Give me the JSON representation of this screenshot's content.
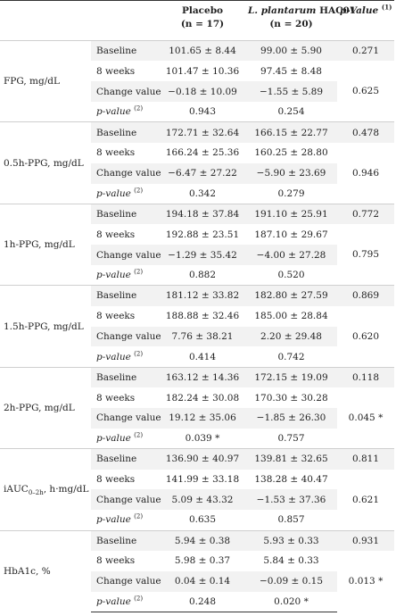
{
  "header": {
    "placebo_name": "Placebo",
    "placebo_n": "(n = 17)",
    "lp_name_italic": "L. plantarum",
    "lp_name_strain": "HAC01",
    "lp_n": "(n = 20)",
    "pvalue_label": "p-Value",
    "pvalue_sup": "(1)"
  },
  "row_labels": {
    "baseline": "Baseline",
    "weeks8": "8 weeks",
    "change": "Change value",
    "pval": "p-value",
    "pval_sup": "(2)"
  },
  "groups": [
    {
      "label": "FPG, mg/dL",
      "baseline": {
        "placebo": "101.65 ± 8.44",
        "lp": "99.00 ± 5.90",
        "p": "0.271"
      },
      "weeks8": {
        "placebo": "101.47 ± 10.36",
        "lp": "97.45 ± 8.48"
      },
      "change": {
        "placebo": "−0.18 ± 10.09",
        "lp": "−1.55 ± 5.89",
        "p": "0.625"
      },
      "pval": {
        "placebo": "0.943",
        "lp": "0.254"
      }
    },
    {
      "label": "0.5h-PPG, mg/dL",
      "baseline": {
        "placebo": "172.71 ± 32.64",
        "lp": "166.15 ± 22.77",
        "p": "0.478"
      },
      "weeks8": {
        "placebo": "166.24 ± 25.36",
        "lp": "160.25 ± 28.80"
      },
      "change": {
        "placebo": "−6.47 ± 27.22",
        "lp": "−5.90 ± 23.69",
        "p": "0.946"
      },
      "pval": {
        "placebo": "0.342",
        "lp": "0.279"
      }
    },
    {
      "label": "1h-PPG, mg/dL",
      "baseline": {
        "placebo": "194.18 ± 37.84",
        "lp": "191.10 ± 25.91",
        "p": "0.772"
      },
      "weeks8": {
        "placebo": "192.88 ± 23.51",
        "lp": "187.10 ± 29.67"
      },
      "change": {
        "placebo": "−1.29 ± 35.42",
        "lp": "−4.00 ± 27.28",
        "p": "0.795"
      },
      "pval": {
        "placebo": "0.882",
        "lp": "0.520"
      }
    },
    {
      "label": "1.5h-PPG, mg/dL",
      "baseline": {
        "placebo": "181.12 ± 33.82",
        "lp": "182.80 ± 27.59",
        "p": "0.869"
      },
      "weeks8": {
        "placebo": "188.88 ± 32.46",
        "lp": "185.00 ± 28.84"
      },
      "change": {
        "placebo": "7.76 ± 38.21",
        "lp": "2.20 ± 29.48",
        "p": "0.620"
      },
      "pval": {
        "placebo": "0.414",
        "lp": "0.742"
      }
    },
    {
      "label": "2h-PPG, mg/dL",
      "baseline": {
        "placebo": "163.12 ± 14.36",
        "lp": "172.15 ± 19.09",
        "p": "0.118"
      },
      "weeks8": {
        "placebo": "182.24 ± 30.08",
        "lp": "170.30 ± 30.28"
      },
      "change": {
        "placebo": "19.12 ± 35.06",
        "lp": "−1.85 ± 26.30",
        "p": "0.045 *"
      },
      "pval": {
        "placebo": "0.039 *",
        "lp": "0.757"
      }
    },
    {
      "label": "iAUC",
      "label_sub": "0–2h",
      "label_rest": ", h·mg/dL",
      "baseline": {
        "placebo": "136.90 ± 40.97",
        "lp": "139.81 ± 32.65",
        "p": "0.811"
      },
      "weeks8": {
        "placebo": "141.99 ± 33.18",
        "lp": "138.28 ± 40.47"
      },
      "change": {
        "placebo": "5.09 ± 43.32",
        "lp": "−1.53 ± 37.36",
        "p": "0.621"
      },
      "pval": {
        "placebo": "0.635",
        "lp": "0.857"
      }
    },
    {
      "label": "HbA1c, %",
      "baseline": {
        "placebo": "5.94 ± 0.38",
        "lp": "5.93 ± 0.33",
        "p": "0.931"
      },
      "weeks8": {
        "placebo": "5.98 ± 0.37",
        "lp": "5.84 ± 0.33"
      },
      "change": {
        "placebo": "0.04 ± 0.14",
        "lp": "−0.09 ± 0.15",
        "p": "0.013 *"
      },
      "pval": {
        "placebo": "0.248",
        "lp": "0.020 *"
      }
    }
  ]
}
